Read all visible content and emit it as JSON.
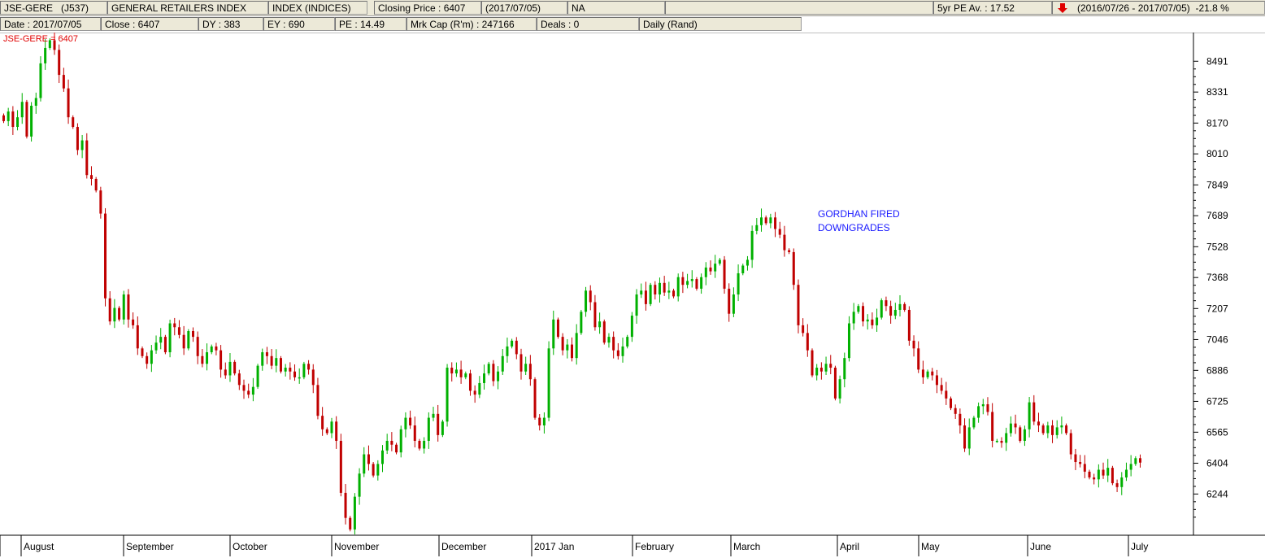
{
  "header": {
    "code": "JSE-GERE",
    "id": "(J537)",
    "name": "GENERAL RETAILERS INDEX",
    "index_type": "INDEX (INDICES)",
    "closing": "Closing Price : 6407",
    "closing_date": "(2017/07/05)",
    "na": "NA",
    "pe_avg": "5yr PE Av. : 17.52",
    "range": "(2016/07/26 - 2017/07/05)",
    "change": "-21.8 %",
    "change_color": "#e00000"
  },
  "info": {
    "date": "Date : 2017/07/05",
    "close": "Close : 6407",
    "dy": "DY : 383",
    "ey": "EY : 690",
    "pe": "PE : 14.49",
    "mkcap": "Mrk Cap (R'm) : 247166",
    "deals": "Deals : 0",
    "period": "Daily (Rand)"
  },
  "chart_data": {
    "type": "candlestick",
    "series_label": "JSE-GERE = 6407",
    "up_color": "#00b000",
    "down_color": "#c00000",
    "ylim": [
      6030,
      8640
    ],
    "y_ticks": [
      8491,
      8331,
      8170,
      8010,
      7849,
      7689,
      7528,
      7368,
      7207,
      7046,
      6886,
      6725,
      6565,
      6404,
      6244
    ],
    "x_months": [
      "August",
      "September",
      "October",
      "November",
      "December",
      "2017 Jan",
      "February",
      "March",
      "April",
      "May",
      "June",
      "July"
    ],
    "closes": [
      8180,
      8230,
      8150,
      8200,
      8280,
      8100,
      8260,
      8300,
      8480,
      8560,
      8600,
      8550,
      8420,
      8350,
      8200,
      8150,
      8030,
      8080,
      7900,
      7880,
      7820,
      7700,
      7260,
      7140,
      7210,
      7150,
      7280,
      7150,
      7120,
      7000,
      6960,
      6920,
      6990,
      7030,
      7060,
      6980,
      7130,
      7110,
      7070,
      7000,
      7090,
      7060,
      6960,
      6920,
      6980,
      7010,
      6990,
      6890,
      6860,
      6930,
      6870,
      6810,
      6780,
      6760,
      6800,
      6910,
      6980,
      6960,
      6910,
      6950,
      6880,
      6900,
      6880,
      6850,
      6850,
      6920,
      6890,
      6810,
      6650,
      6580,
      6560,
      6620,
      6520,
      6250,
      6120,
      6060,
      6230,
      6350,
      6450,
      6400,
      6340,
      6400,
      6470,
      6520,
      6500,
      6460,
      6580,
      6640,
      6600,
      6520,
      6480,
      6520,
      6640,
      6660,
      6550,
      6620,
      6900,
      6870,
      6890,
      6850,
      6870,
      6780,
      6760,
      6820,
      6870,
      6920,
      6830,
      6880,
      6960,
      7010,
      7040,
      6970,
      6880,
      6920,
      6840,
      6640,
      6600,
      6640,
      7000,
      7150,
      7060,
      6990,
      7020,
      6950,
      7080,
      7190,
      7300,
      7240,
      7110,
      7140,
      7030,
      7060,
      6990,
      6960,
      7010,
      7060,
      7170,
      7280,
      7300,
      7230,
      7330,
      7280,
      7340,
      7290,
      7300,
      7270,
      7370,
      7330,
      7350,
      7360,
      7310,
      7370,
      7420,
      7400,
      7440,
      7460,
      7310,
      7180,
      7280,
      7390,
      7430,
      7460,
      7610,
      7640,
      7680,
      7650,
      7680,
      7620,
      7590,
      7510,
      7500,
      7330,
      7120,
      7080,
      6990,
      6860,
      6900,
      6880,
      6920,
      6900,
      6740,
      6840,
      6950,
      7130,
      7190,
      7220,
      7140,
      7150,
      7120,
      7160,
      7250,
      7220,
      7170,
      7200,
      7230,
      7200,
      7040,
      7000,
      6890,
      6850,
      6880,
      6860,
      6810,
      6780,
      6740,
      6690,
      6660,
      6600,
      6480,
      6590,
      6640,
      6700,
      6710,
      6670,
      6520,
      6520,
      6510,
      6560,
      6610,
      6590,
      6520,
      6580,
      6720,
      6620,
      6600,
      6560,
      6600,
      6550,
      6590,
      6600,
      6560,
      6450,
      6410,
      6400,
      6360,
      6330,
      6320,
      6370,
      6340,
      6380,
      6300,
      6280,
      6330,
      6370,
      6400,
      6430,
      6407
    ]
  }
}
